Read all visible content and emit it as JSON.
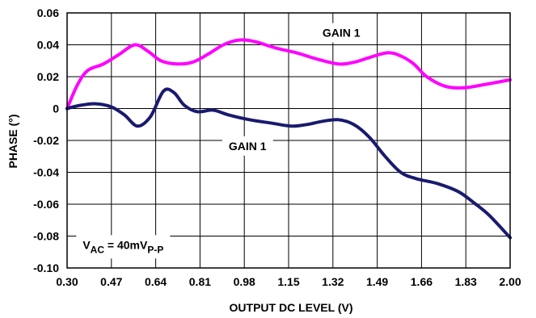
{
  "chart_data": {
    "type": "line",
    "xlabel": "OUTPUT DC LEVEL (V)",
    "ylabel": "PHASE (°)",
    "xlim": [
      0.3,
      2.0
    ],
    "ylim": [
      -0.1,
      0.06
    ],
    "x_ticks": [
      "0.30",
      "0.47",
      "0.64",
      "0.81",
      "0.98",
      "1.15",
      "1.32",
      "1.49",
      "1.66",
      "1.83",
      "2.00"
    ],
    "y_ticks": [
      "0.06",
      "0.04",
      "0.02",
      "0",
      "-0.02",
      "-0.04",
      "-0.06",
      "-0.08",
      "-0.10"
    ],
    "grid": true,
    "series": [
      {
        "label": "GAIN 1",
        "color": "#ff00ff",
        "points": [
          [
            0.3,
            0.0
          ],
          [
            0.34,
            0.015
          ],
          [
            0.38,
            0.024
          ],
          [
            0.44,
            0.028
          ],
          [
            0.5,
            0.034
          ],
          [
            0.56,
            0.04
          ],
          [
            0.61,
            0.036
          ],
          [
            0.66,
            0.03
          ],
          [
            0.72,
            0.028
          ],
          [
            0.78,
            0.029
          ],
          [
            0.84,
            0.034
          ],
          [
            0.9,
            0.04
          ],
          [
            0.96,
            0.043
          ],
          [
            1.02,
            0.042
          ],
          [
            1.1,
            0.038
          ],
          [
            1.18,
            0.035
          ],
          [
            1.26,
            0.031
          ],
          [
            1.34,
            0.028
          ],
          [
            1.4,
            0.029
          ],
          [
            1.46,
            0.032
          ],
          [
            1.53,
            0.035
          ],
          [
            1.58,
            0.033
          ],
          [
            1.63,
            0.028
          ],
          [
            1.68,
            0.02
          ],
          [
            1.75,
            0.014
          ],
          [
            1.82,
            0.013
          ],
          [
            1.9,
            0.015
          ],
          [
            2.0,
            0.018
          ]
        ]
      },
      {
        "label": "GAIN 1",
        "color": "#1a1a6e",
        "points": [
          [
            0.3,
            0.0
          ],
          [
            0.35,
            0.002
          ],
          [
            0.41,
            0.003
          ],
          [
            0.47,
            0.001
          ],
          [
            0.52,
            -0.004
          ],
          [
            0.57,
            -0.011
          ],
          [
            0.62,
            -0.005
          ],
          [
            0.67,
            0.011
          ],
          [
            0.71,
            0.01
          ],
          [
            0.75,
            0.002
          ],
          [
            0.8,
            -0.002
          ],
          [
            0.86,
            -0.001
          ],
          [
            0.92,
            -0.004
          ],
          [
            1.0,
            -0.007
          ],
          [
            1.08,
            -0.009
          ],
          [
            1.16,
            -0.011
          ],
          [
            1.22,
            -0.01
          ],
          [
            1.28,
            -0.008
          ],
          [
            1.34,
            -0.007
          ],
          [
            1.4,
            -0.01
          ],
          [
            1.46,
            -0.018
          ],
          [
            1.52,
            -0.03
          ],
          [
            1.58,
            -0.04
          ],
          [
            1.64,
            -0.044
          ],
          [
            1.72,
            -0.047
          ],
          [
            1.8,
            -0.052
          ],
          [
            1.86,
            -0.059
          ],
          [
            1.92,
            -0.067
          ],
          [
            2.0,
            -0.081
          ]
        ]
      }
    ],
    "annotations": [
      {
        "text": "GAIN 1",
        "x": 1.28,
        "y": 0.045
      },
      {
        "text": "GAIN 1",
        "x": 0.92,
        "y": -0.026
      },
      {
        "text": "V",
        "sub1": "AC",
        "mid": " = 40mV",
        "sub2": "P-P",
        "x": 0.36,
        "y": -0.088
      }
    ]
  }
}
